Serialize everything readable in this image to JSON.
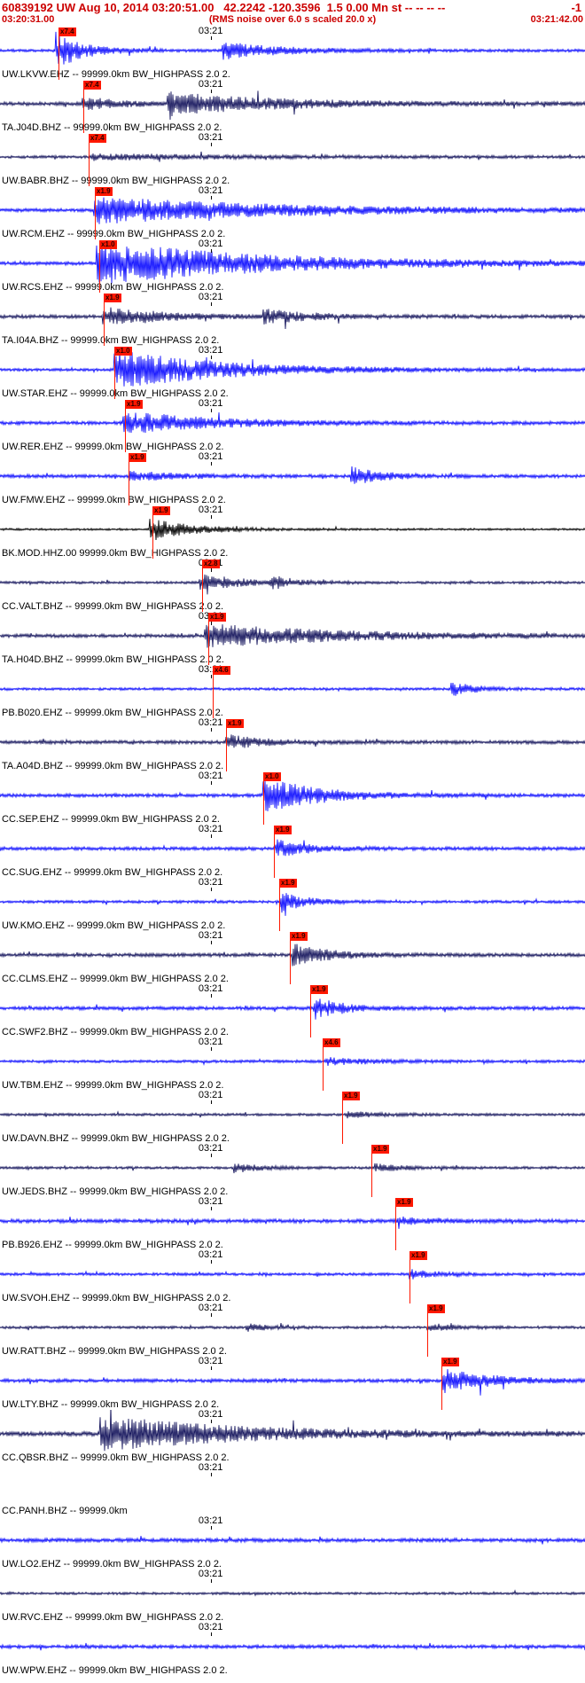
{
  "chart_data": {
    "type": "line",
    "title": "60839192 UW Aug 10, 2014 03:20:51.00   42.2242 -120.3596  1.5 0.00 Mn st -- -- -- --",
    "title_right": "-1",
    "x_start": "03:20:31.00",
    "note": "(RMS noise over 6.0 s scaled 20.0 x)",
    "x_end": "03:21:42.00",
    "x_tick": "03:21",
    "colors": {
      "blue": "#1010ff",
      "dark": "#17175e",
      "black": "#000000",
      "pick_red": "#ff1800",
      "header_red": "#cc0000"
    },
    "traces": [
      {
        "label": "UW.LKVW.EHZ -- 99999.0km BW_HIGHPASS 2.0 2.",
        "color": "blue",
        "pick": 0.1,
        "pick_label": "x7.4",
        "noise": 1.6,
        "bursts": [
          [
            0.095,
            20,
            0.05
          ],
          [
            0.38,
            9,
            0.1
          ]
        ]
      },
      {
        "label": "TA.J04D.BHZ -- 99999.0km BW_HIGHPASS 2.0 2.",
        "color": "dark",
        "pick": 0.143,
        "pick_label": "x7.4",
        "noise": 2.2,
        "bursts": [
          [
            0.14,
            7,
            0.06
          ],
          [
            0.285,
            12,
            0.18
          ]
        ]
      },
      {
        "label": "UW.BABR.BHZ -- 99999.0km BW_HIGHPASS 2.0 2.",
        "color": "dark",
        "pick": 0.152,
        "pick_label": "x7.4",
        "noise": 1.6,
        "bursts": [
          [
            0.155,
            3,
            0.25
          ]
        ]
      },
      {
        "label": "UW.RCM.EHZ -- 99999.0km BW_HIGHPASS 2.0 2.",
        "color": "blue",
        "pick": 0.162,
        "pick_label": "x1.9",
        "noise": 2.0,
        "bursts": [
          [
            0.16,
            15,
            0.3
          ]
        ]
      },
      {
        "label": "UW.RCS.EHZ -- 99999.0km BW_HIGHPASS 2.0 2.",
        "color": "blue",
        "pick": 0.17,
        "pick_label": "x1.0",
        "noise": 2.0,
        "bursts": [
          [
            0.165,
            24,
            0.28
          ]
        ]
      },
      {
        "label": "TA.I04A.BHZ -- 99999.0km BW_HIGHPASS 2.0 2.",
        "color": "dark",
        "pick": 0.178,
        "pick_label": "x1.9",
        "noise": 2.0,
        "bursts": [
          [
            0.175,
            10,
            0.1
          ],
          [
            0.45,
            7,
            0.08
          ]
        ]
      },
      {
        "label": "UW.STAR.EHZ -- 99999.0km BW_HIGHPASS 2.0 2.",
        "color": "blue",
        "pick": 0.196,
        "pick_label": "x1.0",
        "noise": 1.6,
        "bursts": [
          [
            0.195,
            22,
            0.18
          ]
        ]
      },
      {
        "label": "UW.RER.EHZ -- 99999.0km BW_HIGHPASS 2.0 2.",
        "color": "blue",
        "pick": 0.213,
        "pick_label": "x1.9",
        "noise": 2.0,
        "bursts": [
          [
            0.21,
            12,
            0.15
          ]
        ]
      },
      {
        "label": "UW.FMW.EHZ -- 99999.0km BW_HIGHPASS 2.0 2.",
        "color": "blue",
        "pick": 0.22,
        "pick_label": "x1.9",
        "noise": 2.0,
        "bursts": [
          [
            0.22,
            5,
            0.08
          ],
          [
            0.6,
            10,
            0.05
          ]
        ]
      },
      {
        "label": "BK.MOD.HHZ.00 99999.0km BW_HIGHPASS 2.0 2.",
        "color": "black",
        "pick": 0.26,
        "pick_label": "x1.9",
        "noise": 1.2,
        "bursts": [
          [
            0.255,
            13,
            0.07
          ]
        ]
      },
      {
        "label": "CC.VALT.BHZ -- 99999.0km BW_HIGHPASS 2.0 2.",
        "color": "dark",
        "pick": 0.345,
        "pick_label": "x2.8",
        "noise": 1.5,
        "bursts": [
          [
            0.34,
            11,
            0.06
          ],
          [
            0.46,
            7,
            0.04
          ]
        ]
      },
      {
        "label": "TA.H04D.BHZ -- 99999.0km BW_HIGHPASS 2.0 2.",
        "color": "dark",
        "pick": 0.356,
        "pick_label": "x1.9",
        "noise": 2.0,
        "bursts": [
          [
            0.35,
            13,
            0.22
          ]
        ]
      },
      {
        "label": "PB.B020.EHZ -- 99999.0km BW_HIGHPASS 2.0 2.",
        "color": "blue",
        "pick": 0.364,
        "pick_label": "x4.6",
        "noise": 1.5,
        "bursts": [
          [
            0.77,
            8,
            0.04
          ]
        ]
      },
      {
        "label": "TA.A04D.BHZ -- 99999.0km BW_HIGHPASS 2.0 2.",
        "color": "dark",
        "pick": 0.386,
        "pick_label": "x1.9",
        "noise": 2.0,
        "bursts": [
          [
            0.385,
            8,
            0.06
          ]
        ]
      },
      {
        "label": "CC.SEP.EHZ -- 99999.0km BW_HIGHPASS 2.0 2.",
        "color": "blue",
        "pick": 0.45,
        "pick_label": "x1.0",
        "noise": 2.0,
        "bursts": [
          [
            0.45,
            20,
            0.09
          ]
        ]
      },
      {
        "label": "CC.SUG.EHZ -- 99999.0km BW_HIGHPASS 2.0 2.",
        "color": "blue",
        "pick": 0.468,
        "pick_label": "x1.9",
        "noise": 2.0,
        "bursts": [
          [
            0.47,
            9,
            0.06
          ]
        ]
      },
      {
        "label": "UW.KMO.EHZ -- 99999.0km BW_HIGHPASS 2.0 2.",
        "color": "blue",
        "pick": 0.477,
        "pick_label": "x1.9",
        "noise": 1.6,
        "bursts": [
          [
            0.478,
            12,
            0.04
          ]
        ]
      },
      {
        "label": "CC.CLMS.EHZ -- 99999.0km BW_HIGHPASS 2.0 2.",
        "color": "dark",
        "pick": 0.496,
        "pick_label": "x1.9",
        "noise": 2.0,
        "bursts": [
          [
            0.5,
            12,
            0.06
          ]
        ]
      },
      {
        "label": "CC.SWF2.BHZ -- 99999.0km BW_HIGHPASS 2.0 2.",
        "color": "blue",
        "pick": 0.53,
        "pick_label": "x1.9",
        "noise": 2.0,
        "bursts": [
          [
            0.535,
            12,
            0.05
          ]
        ]
      },
      {
        "label": "UW.TBM.EHZ -- 99999.0km BW_HIGHPASS 2.0 2.",
        "color": "blue",
        "pick": 0.552,
        "pick_label": "x4.6",
        "noise": 1.6,
        "bursts": [
          [
            0.555,
            4,
            0.08
          ]
        ]
      },
      {
        "label": "UW.DAVN.BHZ -- 99999.0km BW_HIGHPASS 2.0 2.",
        "color": "dark",
        "pick": 0.585,
        "pick_label": "x1.9",
        "noise": 1.5,
        "bursts": [
          [
            0.59,
            3,
            0.06
          ]
        ]
      },
      {
        "label": "UW.JEDS.BHZ -- 99999.0km BW_HIGHPASS 2.0 2.",
        "color": "dark",
        "pick": 0.635,
        "pick_label": "x1.9",
        "noise": 1.5,
        "bursts": [
          [
            0.4,
            5,
            0.04
          ],
          [
            0.64,
            4,
            0.05
          ]
        ]
      },
      {
        "label": "PB.B926.EHZ -- 99999.0km BW_HIGHPASS 2.0 2.",
        "color": "blue",
        "pick": 0.675,
        "pick_label": "x1.9",
        "noise": 2.2,
        "bursts": [
          [
            0.68,
            4,
            0.05
          ]
        ]
      },
      {
        "label": "UW.SVOH.EHZ -- 99999.0km BW_HIGHPASS 2.0 2.",
        "color": "blue",
        "pick": 0.7,
        "pick_label": "x1.9",
        "noise": 1.6,
        "bursts": [
          [
            0.7,
            5,
            0.05
          ]
        ]
      },
      {
        "label": "UW.RATT.BHZ -- 99999.0km BW_HIGHPASS 2.0 2.",
        "color": "dark",
        "pick": 0.73,
        "pick_label": "x1.9",
        "noise": 1.5,
        "bursts": [
          [
            0.42,
            4,
            0.04
          ],
          [
            0.73,
            4,
            0.05
          ]
        ]
      },
      {
        "label": "UW.LTY.BHZ -- 99999.0km BW_HIGHPASS 2.0 2.",
        "color": "blue",
        "pick": 0.755,
        "pick_label": "x1.9",
        "noise": 2.0,
        "bursts": [
          [
            0.755,
            13,
            0.08
          ]
        ]
      },
      {
        "label": "CC.QBSR.BHZ -- 99999.0km BW_HIGHPASS 2.0 2.",
        "color": "dark",
        "pick": null,
        "pick_label": "",
        "noise": 2.5,
        "bursts": [
          [
            0.17,
            20,
            0.22
          ]
        ]
      },
      {
        "label": "CC.PANH.BHZ -- 99999.0km",
        "color": "dark",
        "pick": null,
        "pick_label": "",
        "noise": 0,
        "bursts": []
      },
      {
        "label": "UW.LO2.EHZ -- 99999.0km BW_HIGHPASS 2.0 2.",
        "color": "blue",
        "pick": null,
        "pick_label": "",
        "noise": 2.2,
        "bursts": []
      },
      {
        "label": "UW.RVC.EHZ -- 99999.0km BW_HIGHPASS 2.0 2.",
        "color": "dark",
        "pick": null,
        "pick_label": "",
        "noise": 1.4,
        "bursts": []
      },
      {
        "label": "UW.WPW.EHZ -- 99999.0km BW_HIGHPASS 2.0 2.",
        "color": "blue",
        "pick": null,
        "pick_label": "",
        "noise": 2.0,
        "bursts": []
      }
    ]
  }
}
